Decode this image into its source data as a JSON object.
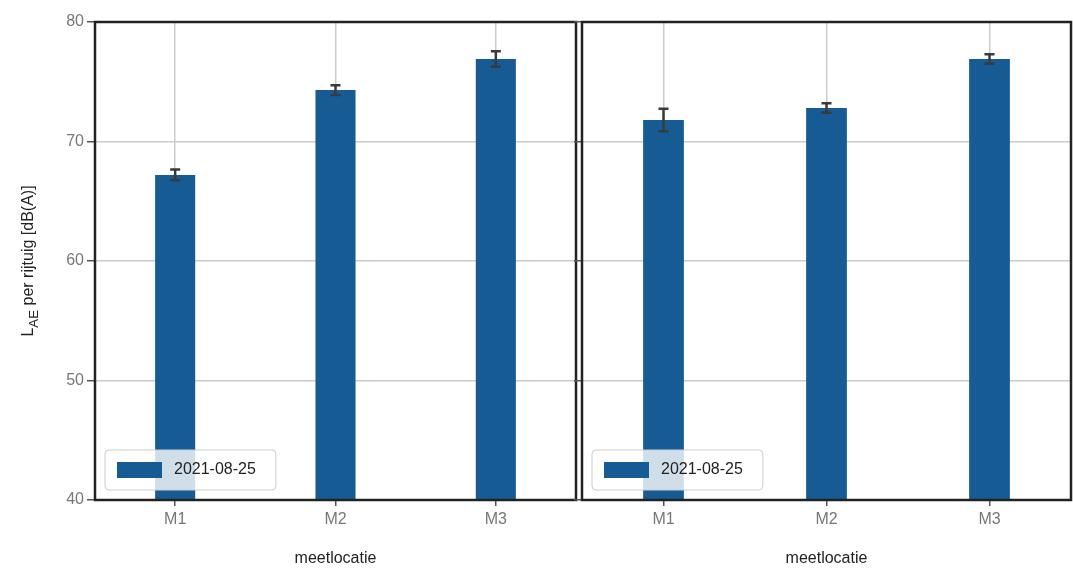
{
  "chart_data": [
    {
      "type": "bar",
      "xlabel": "meetlocatie",
      "ylabel": "L$_{AE}$ per rijtuig [dB(A)]",
      "categories": [
        "M1",
        "M2",
        "M3"
      ],
      "series": [
        {
          "name": "2021-08-25",
          "color": "#175b95",
          "values": [
            67.2,
            74.3,
            76.9
          ],
          "errors": [
            0.45,
            0.4,
            0.65
          ]
        }
      ],
      "ylim": [
        40,
        80
      ],
      "yticks": [
        40,
        50,
        60,
        70,
        80
      ],
      "grid": true,
      "legend": "bottom left"
    },
    {
      "type": "bar",
      "xlabel": "meetlocatie",
      "categories": [
        "M1",
        "M2",
        "M3"
      ],
      "series": [
        {
          "name": "2021-08-25",
          "color": "#175b95",
          "values": [
            71.8,
            72.8,
            76.9
          ],
          "errors": [
            0.95,
            0.4,
            0.4
          ]
        }
      ],
      "ylim": [
        40,
        80
      ],
      "yticks": [
        40,
        50,
        60,
        70,
        80
      ],
      "grid": true,
      "legend": "bottom left",
      "tick_labels": "x"
    }
  ]
}
